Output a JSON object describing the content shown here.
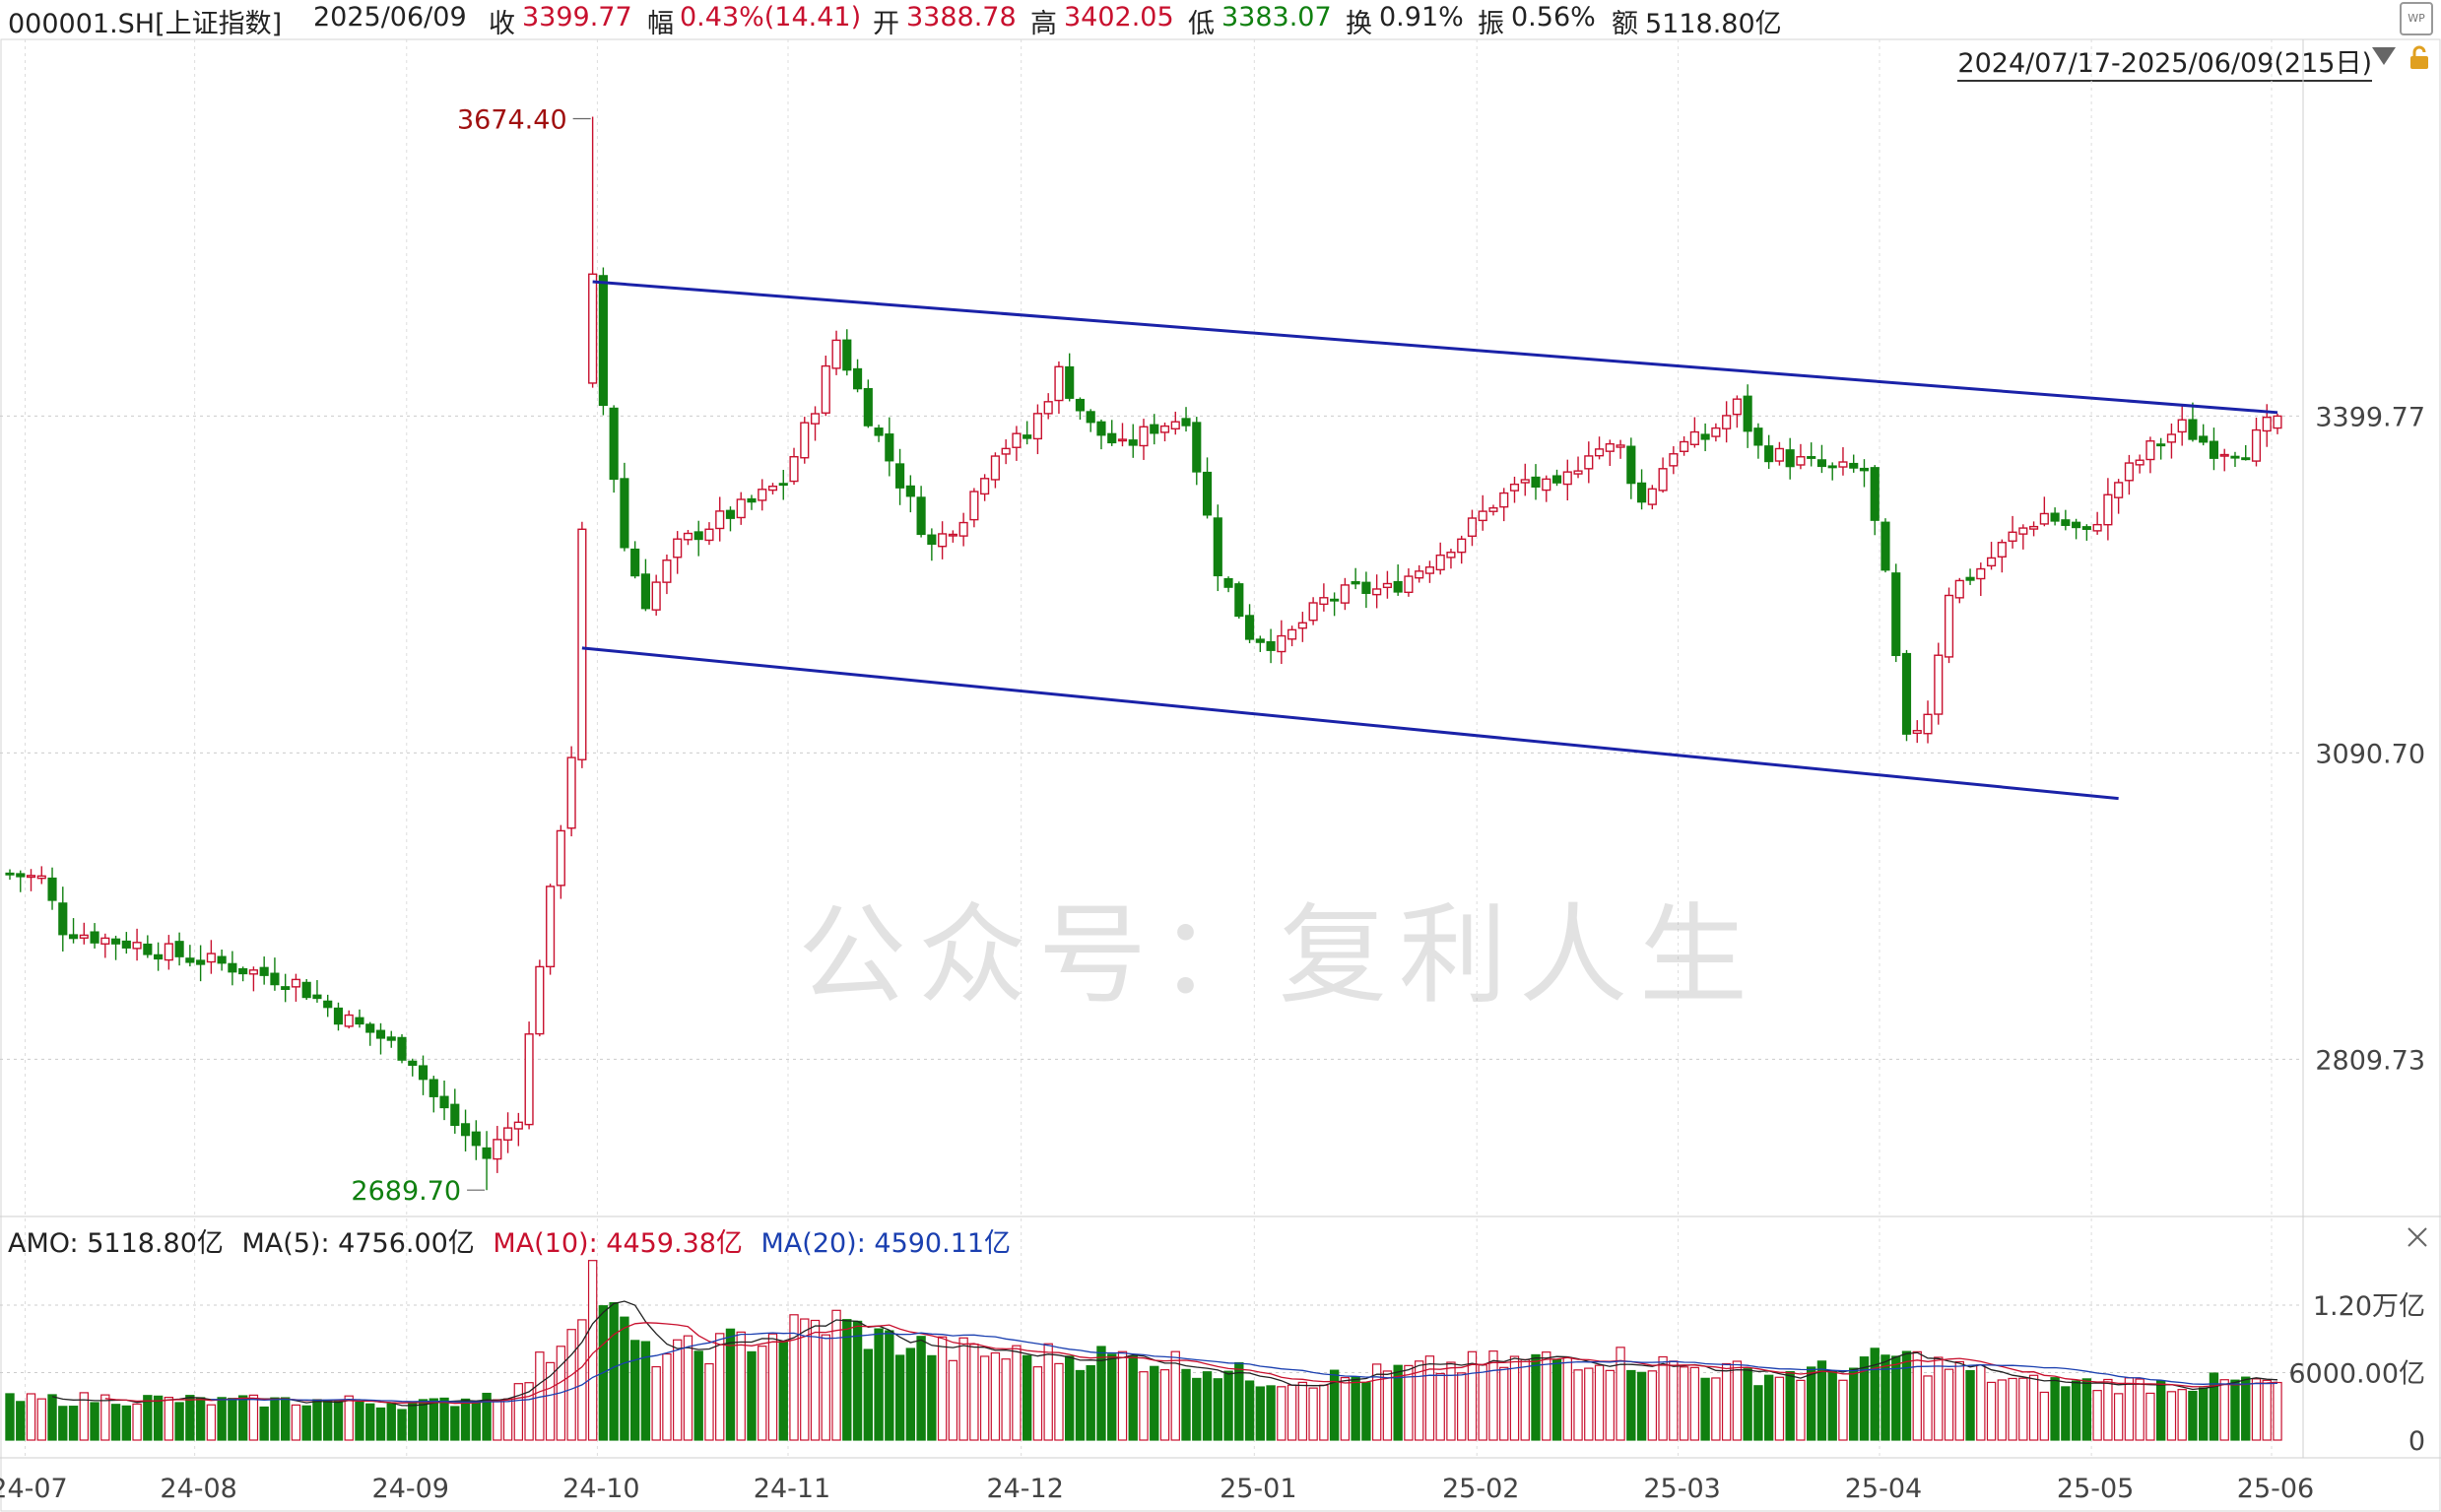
{
  "header": {
    "symbol": "000001.SH[上证指数]",
    "date": "2025/06/09",
    "close_label": "收",
    "close": "3399.77",
    "change_label": "幅",
    "change": "0.43%(14.41)",
    "open_label": "开",
    "open": "3388.78",
    "high_label": "高",
    "high": "3402.05",
    "low_label": "低",
    "low": "3383.07",
    "turnover_label": "换",
    "turnover": "0.91%",
    "amplitude_label": "振",
    "amplitude": "0.56%",
    "amount_label": "额",
    "amount": "5118.80亿",
    "range": "2024/07/17-2025/06/09(215日)"
  },
  "watermark": "公众号：复利人生",
  "volume_legend": {
    "amo": "AMO: 5118.80亿",
    "ma5": "MA(5): 4756.00亿",
    "ma10": "MA(10): 4459.38亿",
    "ma20": "MA(20): 4590.11亿"
  },
  "colors": {
    "up": "#c8102e",
    "down": "#108010",
    "channel": "#1a22a8",
    "ma20": "#1a3fb0"
  },
  "chart_data": {
    "type": "candlestick",
    "y_ticks": [
      "3399.77",
      "3090.70",
      "2809.73"
    ],
    "y_tick_values": [
      3399.77,
      3090.7,
      2809.73
    ],
    "ylim": [
      2670,
      3720
    ],
    "x_ticks": [
      "24-07",
      "24-08",
      "24-09",
      "24-10",
      "24-11",
      "24-12",
      "25-01",
      "25-02",
      "25-03",
      "25-04",
      "25-05",
      "25-06"
    ],
    "x_tick_index": [
      2,
      18,
      38,
      56,
      74,
      96,
      118,
      139,
      158,
      177,
      197,
      214
    ],
    "annotations": {
      "high": "3674.40",
      "low": "2689.70"
    },
    "high_value": 3674.4,
    "high_index": 55,
    "low_value": 2689.7,
    "low_index": 45,
    "volume_ticks": [
      "1.20万亿",
      "6000.00亿",
      "0"
    ],
    "volume_tick_values": [
      12000,
      6000,
      0
    ],
    "channel_upper": [
      [
        55,
        3523
      ],
      [
        214,
        3403
      ]
    ],
    "channel_lower": [
      [
        54,
        3187
      ],
      [
        199,
        3049
      ]
    ],
    "anchors": [
      [
        0,
        2980
      ],
      [
        3,
        2975
      ],
      [
        5,
        2930
      ],
      [
        9,
        2920
      ],
      [
        12,
        2915
      ],
      [
        16,
        2905
      ],
      [
        21,
        2895
      ],
      [
        27,
        2880
      ],
      [
        31,
        2850
      ],
      [
        35,
        2830
      ],
      [
        38,
        2810
      ],
      [
        40,
        2775
      ],
      [
        42,
        2750
      ],
      [
        45,
        2720
      ],
      [
        48,
        2760
      ],
      [
        50,
        2900
      ],
      [
        51,
        2960
      ],
      [
        53,
        3090
      ],
      [
        54,
        3290
      ],
      [
        55,
        3545
      ],
      [
        56,
        3410
      ],
      [
        58,
        3280
      ],
      [
        60,
        3230
      ],
      [
        63,
        3280
      ],
      [
        66,
        3300
      ],
      [
        70,
        3320
      ],
      [
        73,
        3340
      ],
      [
        76,
        3410
      ],
      [
        78,
        3470
      ],
      [
        81,
        3400
      ],
      [
        84,
        3340
      ],
      [
        87,
        3280
      ],
      [
        90,
        3310
      ],
      [
        93,
        3370
      ],
      [
        96,
        3380
      ],
      [
        99,
        3440
      ],
      [
        102,
        3390
      ],
      [
        105,
        3370
      ],
      [
        108,
        3390
      ],
      [
        111,
        3400
      ],
      [
        114,
        3260
      ],
      [
        117,
        3200
      ],
      [
        120,
        3190
      ],
      [
        124,
        3230
      ],
      [
        127,
        3240
      ],
      [
        130,
        3240
      ],
      [
        133,
        3260
      ],
      [
        137,
        3290
      ],
      [
        140,
        3320
      ],
      [
        143,
        3340
      ],
      [
        146,
        3330
      ],
      [
        149,
        3370
      ],
      [
        152,
        3370
      ],
      [
        154,
        3320
      ],
      [
        157,
        3370
      ],
      [
        160,
        3380
      ],
      [
        163,
        3410
      ],
      [
        165,
        3370
      ],
      [
        168,
        3360
      ],
      [
        172,
        3350
      ],
      [
        175,
        3350
      ],
      [
        177,
        3250
      ],
      [
        179,
        3100
      ],
      [
        181,
        3130
      ],
      [
        183,
        3240
      ],
      [
        186,
        3260
      ],
      [
        189,
        3290
      ],
      [
        192,
        3310
      ],
      [
        196,
        3290
      ],
      [
        199,
        3340
      ],
      [
        202,
        3370
      ],
      [
        205,
        3390
      ],
      [
        208,
        3370
      ],
      [
        211,
        3370
      ],
      [
        214,
        3400
      ]
    ],
    "volume_anchors": [
      [
        0,
        3500
      ],
      [
        10,
        3700
      ],
      [
        20,
        3400
      ],
      [
        30,
        3500
      ],
      [
        40,
        3200
      ],
      [
        48,
        4500
      ],
      [
        52,
        9000
      ],
      [
        55,
        15000
      ],
      [
        57,
        11000
      ],
      [
        60,
        7500
      ],
      [
        65,
        8000
      ],
      [
        70,
        9000
      ],
      [
        75,
        10000
      ],
      [
        78,
        10500
      ],
      [
        82,
        9000
      ],
      [
        88,
        8000
      ],
      [
        95,
        7500
      ],
      [
        102,
        7500
      ],
      [
        110,
        7000
      ],
      [
        118,
        5500
      ],
      [
        126,
        5500
      ],
      [
        135,
        6500
      ],
      [
        143,
        7000
      ],
      [
        150,
        7500
      ],
      [
        158,
        6500
      ],
      [
        166,
        5800
      ],
      [
        173,
        6200
      ],
      [
        178,
        7500
      ],
      [
        183,
        6500
      ],
      [
        190,
        5000
      ],
      [
        198,
        5000
      ],
      [
        205,
        5000
      ],
      [
        214,
        5200
      ]
    ]
  }
}
